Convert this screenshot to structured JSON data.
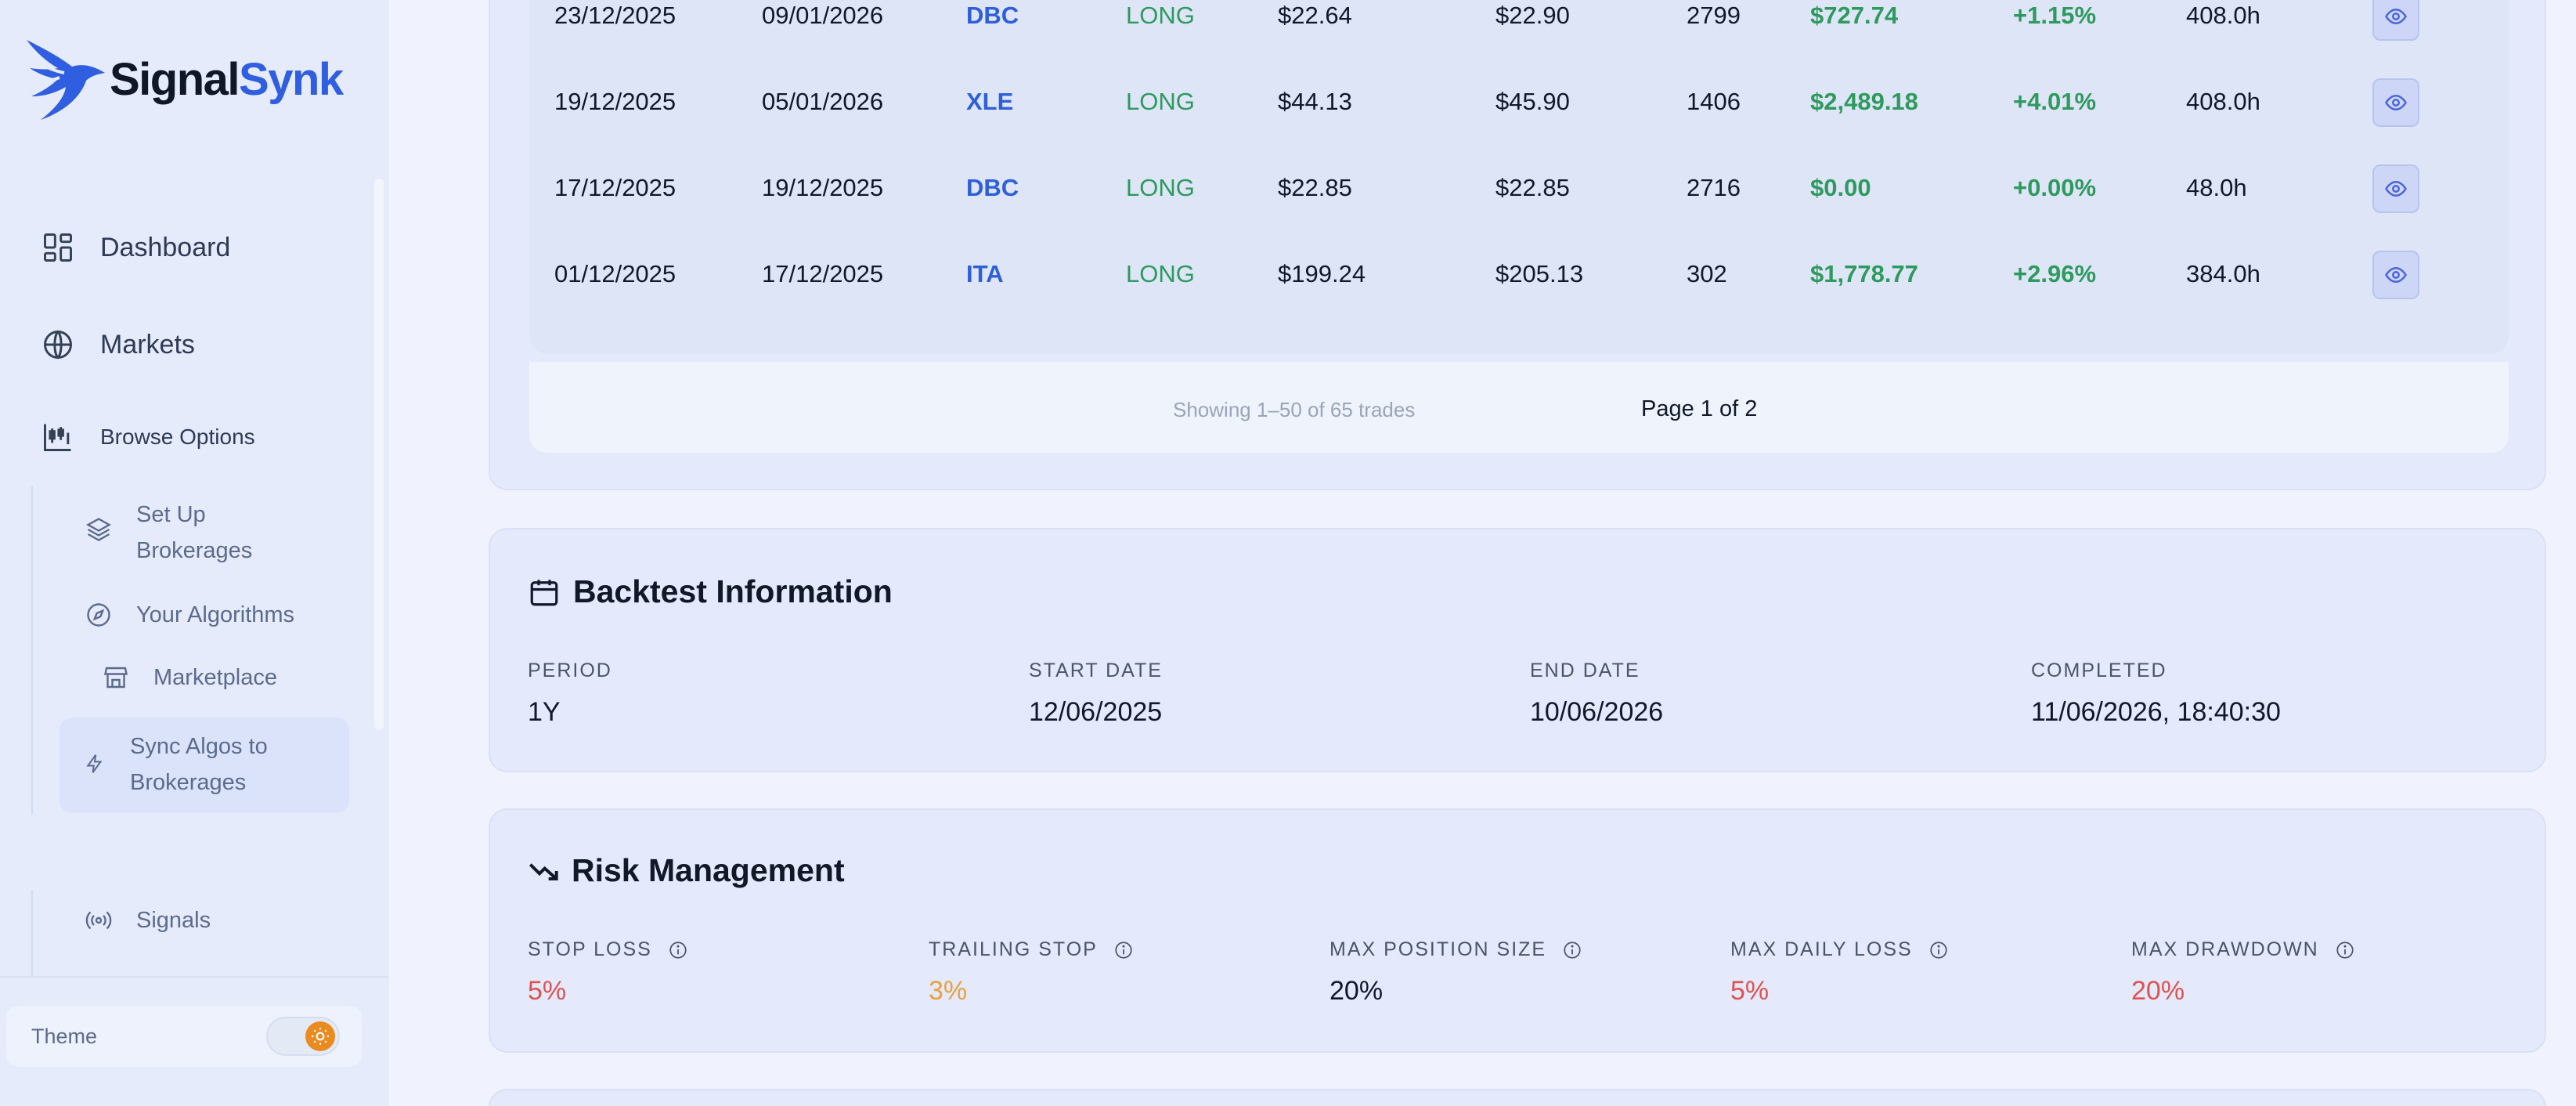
{
  "brand": {
    "name_part1": "Signal",
    "name_part2": "Synk"
  },
  "sidebar": {
    "nav": [
      {
        "label": "Dashboard",
        "icon": "dashboard-grid-icon"
      },
      {
        "label": "Markets",
        "icon": "globe-icon"
      },
      {
        "label": "Browse Options",
        "icon": "candlestick-chart-icon"
      }
    ],
    "sub_items": [
      {
        "label_line1": "Set Up",
        "label_line2": "Brokerages",
        "icon": "layers-icon"
      },
      {
        "label_line1": "Your Algorithms",
        "icon": "compass-icon"
      },
      {
        "label_line1": "Marketplace",
        "icon": "store-icon"
      },
      {
        "label_line1": "Sync Algos to",
        "label_line2": "Brokerages",
        "icon": "lightning-icon",
        "active": true
      },
      {
        "label_line1": "Signals",
        "icon": "broadcast-icon"
      }
    ],
    "theme": {
      "label": "Theme",
      "mode_icon": "sun-icon",
      "accent": "#ea8a1f"
    }
  },
  "trades": {
    "rows": [
      {
        "entry_date": "23/12/2025",
        "exit_date": "09/01/2026",
        "symbol": "DBC",
        "side": "LONG",
        "entry_price": "$22.64",
        "exit_price": "$22.90",
        "qty": "2799",
        "pnl": "$727.74",
        "pnl_pct": "+1.15%",
        "duration": "408.0h"
      },
      {
        "entry_date": "19/12/2025",
        "exit_date": "05/01/2026",
        "symbol": "XLE",
        "side": "LONG",
        "entry_price": "$44.13",
        "exit_price": "$45.90",
        "qty": "1406",
        "pnl": "$2,489.18",
        "pnl_pct": "+4.01%",
        "duration": "408.0h"
      },
      {
        "entry_date": "17/12/2025",
        "exit_date": "19/12/2025",
        "symbol": "DBC",
        "side": "LONG",
        "entry_price": "$22.85",
        "exit_price": "$22.85",
        "qty": "2716",
        "pnl": "$0.00",
        "pnl_pct": "+0.00%",
        "duration": "48.0h"
      },
      {
        "entry_date": "01/12/2025",
        "exit_date": "17/12/2025",
        "symbol": "ITA",
        "side": "LONG",
        "entry_price": "$199.24",
        "exit_price": "$205.13",
        "qty": "302",
        "pnl": "$1,778.77",
        "pnl_pct": "+2.96%",
        "duration": "384.0h"
      }
    ],
    "pagination": {
      "info": "Showing 1–50 of 65 trades",
      "page": "Page 1 of 2"
    },
    "colors": {
      "symbol": "#2f5fd8",
      "positive": "#2e9a5e"
    }
  },
  "backtest_info": {
    "title": "Backtest Information",
    "fields": [
      {
        "label": "PERIOD",
        "value": "1Y"
      },
      {
        "label": "START DATE",
        "value": "12/06/2025"
      },
      {
        "label": "END DATE",
        "value": "10/06/2026"
      },
      {
        "label": "COMPLETED",
        "value": "11/06/2026, 18:40:30"
      }
    ]
  },
  "risk": {
    "title": "Risk Management",
    "fields": [
      {
        "label": "STOP LOSS",
        "value": "5%",
        "color": "#e0524f"
      },
      {
        "label": "TRAILING STOP",
        "value": "3%",
        "color": "#e8a13b"
      },
      {
        "label": "MAX POSITION SIZE",
        "value": "20%",
        "color": "#111827"
      },
      {
        "label": "MAX DAILY LOSS",
        "value": "5%",
        "color": "#e0524f"
      },
      {
        "label": "MAX DRAWDOWN",
        "value": "20%",
        "color": "#e0524f"
      }
    ]
  }
}
